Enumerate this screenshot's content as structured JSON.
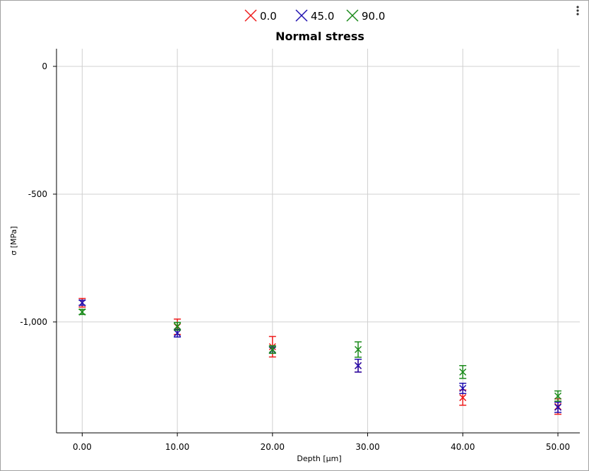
{
  "chart_data": {
    "type": "scatter",
    "title": "Normal stress",
    "x_label": "Depth [µm]",
    "y_label": "σ [MPa]",
    "x": [
      0,
      10,
      20,
      29,
      40,
      50
    ],
    "series": [
      {
        "name": "0.0",
        "color": "#ee1c1c",
        "values": [
          -925,
          -1019,
          -1097,
          -1171,
          -1296,
          -1331
        ],
        "errors": [
          17,
          30,
          40,
          25,
          30,
          30
        ]
      },
      {
        "name": "45.0",
        "color": "#2010b0",
        "values": [
          -925,
          -1044,
          -1110,
          -1171,
          -1260,
          -1334
        ],
        "errors": [
          10,
          15,
          12,
          25,
          20,
          20
        ]
      },
      {
        "name": "90.0",
        "color": "#1a8a1a",
        "values": [
          -961,
          -1017,
          -1108,
          -1108,
          -1196,
          -1290
        ],
        "errors": [
          10,
          15,
          15,
          30,
          25,
          20
        ]
      }
    ],
    "xlim": [
      -2.7,
      52.3
    ],
    "xticks": [
      {
        "value": 0,
        "label": "0.00"
      },
      {
        "value": 10,
        "label": "10.00"
      },
      {
        "value": 20,
        "label": "20.00"
      },
      {
        "value": 30,
        "label": "30.00"
      },
      {
        "value": 40,
        "label": "40.00"
      },
      {
        "value": 50,
        "label": "50.00"
      }
    ],
    "ylim": [
      -1434,
      69
    ],
    "yticks": [
      0,
      -500,
      {
        "value": -1000,
        "label": "-1,000"
      }
    ],
    "grid": true
  }
}
